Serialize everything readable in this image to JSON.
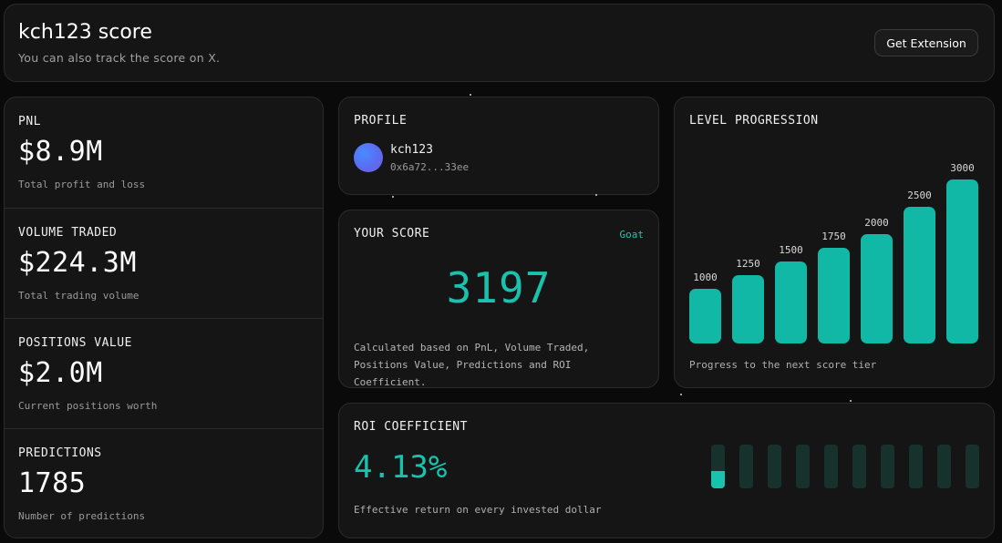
{
  "header": {
    "title": "kch123 score",
    "subtitle": "You can also track the score on X.",
    "button_label": "Get Extension"
  },
  "stats": [
    {
      "label": "PNL",
      "value": "$8.9M",
      "caption": "Total profit and loss"
    },
    {
      "label": "VOLUME TRADED",
      "value": "$224.3M",
      "caption": "Total trading volume"
    },
    {
      "label": "POSITIONS VALUE",
      "value": "$2.0M",
      "caption": "Current positions worth"
    },
    {
      "label": "PREDICTIONS",
      "value": "1785",
      "caption": "Number of predictions"
    }
  ],
  "profile": {
    "label": "PROFILE",
    "username": "kch123",
    "address": "0x6a72...33ee",
    "avatar_icon": "gradient-avatar-icon"
  },
  "score": {
    "label": "YOUR SCORE",
    "tier": "Goat",
    "value": "3197",
    "description": "Calculated based on PnL, Volume Traded, Positions Value, Predictions and ROI Coefficient."
  },
  "level": {
    "label": "LEVEL PROGRESSION",
    "caption": "Progress to the next score tier",
    "tiers": [
      1000,
      1250,
      1500,
      1750,
      2000,
      2500,
      3000
    ]
  },
  "roi": {
    "label": "ROI COEFFICIENT",
    "value": "4.13%",
    "caption": "Effective return on every invested dollar",
    "segments_total": 10,
    "first_segment_fill": 0.4
  },
  "colors": {
    "accent": "#19c2ad",
    "bar": "#12b8a6",
    "segment_empty": "#17312d",
    "card_bg": "#151515",
    "page_bg": "#0a0a0a"
  }
}
